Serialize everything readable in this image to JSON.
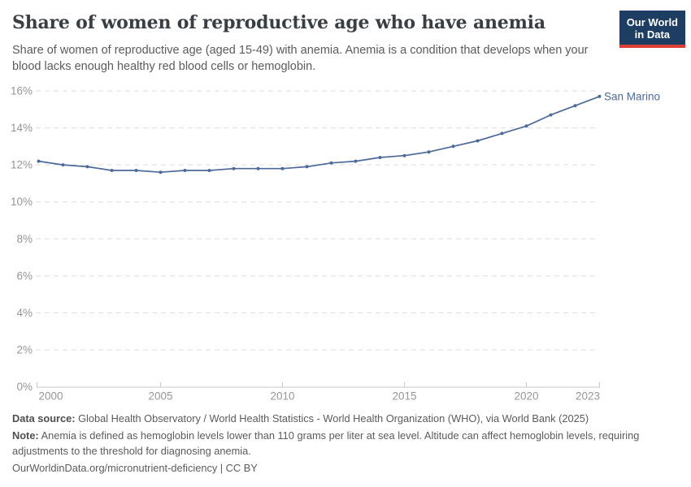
{
  "header": {
    "title": "Share of women of reproductive age who have anemia",
    "subtitle": "Share of women of reproductive age (aged 15-49) with anemia. Anemia is a condition that develops when your blood lacks enough healthy red blood cells or hemoglobin.",
    "logo": {
      "line1": "Our World",
      "line2": "in Data"
    }
  },
  "chart_data": {
    "type": "line",
    "title": "Share of women of reproductive age who have anemia",
    "x": [
      2000,
      2001,
      2002,
      2003,
      2004,
      2005,
      2006,
      2007,
      2008,
      2009,
      2010,
      2011,
      2012,
      2013,
      2014,
      2015,
      2016,
      2017,
      2018,
      2019,
      2020,
      2021,
      2022,
      2023
    ],
    "series": [
      {
        "name": "San Marino",
        "color": "#4C6A9C",
        "values": [
          12.2,
          12.0,
          11.9,
          11.7,
          11.7,
          11.6,
          11.7,
          11.7,
          11.8,
          11.8,
          11.8,
          11.9,
          12.1,
          12.2,
          12.4,
          12.5,
          12.7,
          13.0,
          13.3,
          13.7,
          14.1,
          14.7,
          15.2,
          15.7
        ]
      }
    ],
    "xlim": [
      2000,
      2023
    ],
    "ylim": [
      0,
      16
    ],
    "ytick_step": 2,
    "ytick_suffix": "%",
    "xticks": [
      2000,
      2005,
      2010,
      2015,
      2020,
      2023
    ],
    "grid": true,
    "legend_position": "end-of-line",
    "ylabel": "",
    "xlabel": ""
  },
  "footer": {
    "data_source_label": "Data source:",
    "data_source": "Global Health Observatory / World Health Statistics - World Health Organization (WHO), via World Bank (2025)",
    "note_label": "Note:",
    "note": "Anemia is defined as hemoglobin levels lower than 110 grams per liter at sea level. Altitude can affect hemoglobin levels, requiring adjustments to the threshold for diagnosing anemia.",
    "citation": "OurWorldinData.org/micronutrient-deficiency | CC BY"
  },
  "colors": {
    "line": "#4C6A9C",
    "logo_bg": "#1d3d63",
    "logo_accent": "#dc3f34",
    "title_text": "#393e43",
    "body_text": "#5b5b5b",
    "axis_text": "#969696",
    "gridline": "#dddddd",
    "axis_line": "#c7c7c7"
  }
}
